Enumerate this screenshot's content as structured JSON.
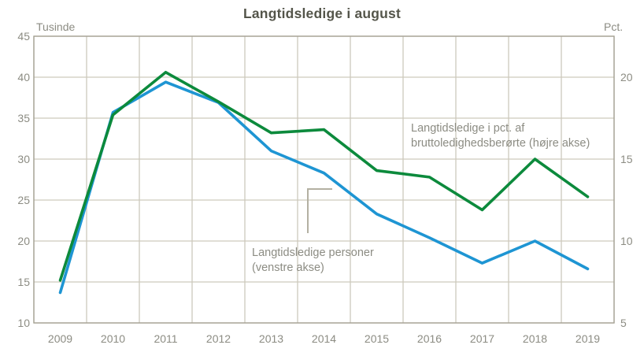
{
  "chart_data": {
    "type": "line",
    "title": "Langtidsledige i august",
    "x": [
      "2009",
      "2010",
      "2011",
      "2012",
      "2013",
      "2014",
      "2015",
      "2016",
      "2017",
      "2018",
      "2019"
    ],
    "series": [
      {
        "name": "Langtidsledige personer (venstre akse)",
        "axis": "left",
        "unit": "Tusinde",
        "color": "#1e95d3",
        "values": [
          13.7,
          35.7,
          39.4,
          36.9,
          31.0,
          28.3,
          23.3,
          20.4,
          17.3,
          20.0,
          16.6
        ]
      },
      {
        "name": "Langtidsledige i pct. af bruttoledighedsberørte (højre akse)",
        "axis": "right",
        "unit": "Pct.",
        "color": "#0c8a3c",
        "values": [
          7.6,
          17.7,
          20.3,
          18.5,
          16.6,
          16.8,
          14.3,
          13.9,
          11.9,
          15.0,
          12.7
        ]
      }
    ],
    "left_axis": {
      "label": "Tusinde",
      "min": 10,
      "max": 45,
      "ticks": [
        45,
        40,
        35,
        30,
        25,
        20,
        15,
        10
      ]
    },
    "right_axis": {
      "label": "Pct.",
      "min": 5,
      "max": 22.5,
      "ticks": [
        20,
        15,
        10,
        5
      ]
    },
    "grid": true,
    "legend_position": "none",
    "annotations": [
      {
        "target": "right-series",
        "lines": [
          "Langtidsledige i pct. af",
          "bruttoledighedsberørte (højre akse)"
        ]
      },
      {
        "target": "left-series",
        "lines": [
          "Langtidsledige personer",
          "(venstre akse)"
        ]
      }
    ]
  },
  "colors": {
    "background": "#ffffff",
    "title": "#54554a",
    "axis_text": "#8c8c83",
    "gridline": "#cdc9bc",
    "plot_border": "#a6a396",
    "callout": "#b3b0a2"
  }
}
